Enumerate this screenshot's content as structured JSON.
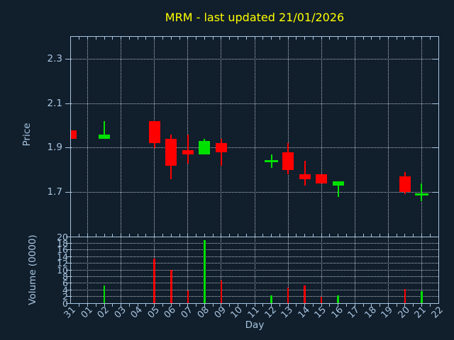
{
  "title": "MRM - last updated 21/01/2026",
  "colors": {
    "background": "#111e2b",
    "axis": "#a6c4e0",
    "grid": "#b2bcc6",
    "up": "#00e000",
    "down": "#ff0000",
    "title": "#ffff00"
  },
  "x_axis": {
    "label": "Day",
    "categories": [
      "31",
      "01",
      "02",
      "03",
      "04",
      "05",
      "06",
      "07",
      "08",
      "09",
      "10",
      "11",
      "12",
      "13",
      "14",
      "15",
      "16",
      "17",
      "18",
      "19",
      "20",
      "21",
      "22"
    ],
    "gridline_days": [
      "01",
      "03",
      "05",
      "07",
      "09",
      "11",
      "13",
      "15",
      "17",
      "19",
      "21"
    ]
  },
  "price_axis": {
    "label": "Price",
    "ticks": [
      "1.7",
      "1.9",
      "2.1",
      "2.3"
    ],
    "range": [
      1.5,
      2.4
    ]
  },
  "volume_axis": {
    "label": "Volume (0000)",
    "ticks": [
      "0",
      "2",
      "4",
      "6",
      "8",
      "10",
      "12",
      "14",
      "16",
      "18",
      "20"
    ],
    "range": [
      0,
      20
    ]
  },
  "chart_data": [
    {
      "type": "candlestick",
      "title": "MRM - last updated 21/01/2026",
      "xlabel": "Day",
      "ylabel": "Price",
      "ylim": [
        1.5,
        2.4
      ],
      "grid": true,
      "categories": [
        "31",
        "01",
        "02",
        "03",
        "04",
        "05",
        "06",
        "07",
        "08",
        "09",
        "10",
        "11",
        "12",
        "13",
        "14",
        "15",
        "16",
        "17",
        "18",
        "19",
        "20",
        "21",
        "22"
      ],
      "candles": [
        {
          "day": "31",
          "open": 1.98,
          "high": 1.98,
          "low": 1.94,
          "close": 1.94,
          "direction": "down"
        },
        {
          "day": "02",
          "open": 1.94,
          "high": 2.02,
          "low": 1.94,
          "close": 1.96,
          "direction": "up"
        },
        {
          "day": "05",
          "open": 2.02,
          "high": 2.02,
          "low": 1.9,
          "close": 1.92,
          "direction": "down"
        },
        {
          "day": "06",
          "open": 1.94,
          "high": 1.96,
          "low": 1.76,
          "close": 1.82,
          "direction": "down"
        },
        {
          "day": "07",
          "open": 1.89,
          "high": 1.96,
          "low": 1.83,
          "close": 1.87,
          "direction": "down"
        },
        {
          "day": "08",
          "open": 1.87,
          "high": 1.94,
          "low": 1.87,
          "close": 1.93,
          "direction": "up"
        },
        {
          "day": "09",
          "open": 1.92,
          "high": 1.94,
          "low": 1.82,
          "close": 1.88,
          "direction": "down"
        },
        {
          "day": "12",
          "open": 1.84,
          "high": 1.87,
          "low": 1.81,
          "close": 1.84,
          "direction": "up"
        },
        {
          "day": "13",
          "open": 1.88,
          "high": 1.92,
          "low": 1.78,
          "close": 1.8,
          "direction": "down"
        },
        {
          "day": "14",
          "open": 1.78,
          "high": 1.84,
          "low": 1.73,
          "close": 1.76,
          "direction": "down"
        },
        {
          "day": "15",
          "open": 1.78,
          "high": 1.78,
          "low": 1.74,
          "close": 1.74,
          "direction": "down"
        },
        {
          "day": "16",
          "open": 1.73,
          "high": 1.75,
          "low": 1.68,
          "close": 1.75,
          "direction": "up"
        },
        {
          "day": "20",
          "open": 1.77,
          "high": 1.79,
          "low": 1.69,
          "close": 1.7,
          "direction": "down"
        },
        {
          "day": "21",
          "open": 1.69,
          "high": 1.74,
          "low": 1.66,
          "close": 1.69,
          "direction": "up"
        }
      ]
    },
    {
      "type": "bar",
      "xlabel": "Day",
      "ylabel": "Volume (0000)",
      "ylim": [
        0,
        20
      ],
      "grid": true,
      "categories": [
        "31",
        "01",
        "02",
        "03",
        "04",
        "05",
        "06",
        "07",
        "08",
        "09",
        "10",
        "11",
        "12",
        "13",
        "14",
        "15",
        "16",
        "17",
        "18",
        "19",
        "20",
        "21",
        "22"
      ],
      "bars": [
        {
          "day": "02",
          "value": 5.3,
          "direction": "up"
        },
        {
          "day": "05",
          "value": 13.4,
          "direction": "down"
        },
        {
          "day": "06",
          "value": 10.0,
          "direction": "down"
        },
        {
          "day": "07",
          "value": 3.9,
          "direction": "down"
        },
        {
          "day": "08",
          "value": 19.0,
          "direction": "up"
        },
        {
          "day": "09",
          "value": 6.9,
          "direction": "down"
        },
        {
          "day": "12",
          "value": 2.4,
          "direction": "up"
        },
        {
          "day": "13",
          "value": 4.6,
          "direction": "down"
        },
        {
          "day": "14",
          "value": 5.4,
          "direction": "down"
        },
        {
          "day": "15",
          "value": 2.0,
          "direction": "down"
        },
        {
          "day": "16",
          "value": 2.4,
          "direction": "up"
        },
        {
          "day": "20",
          "value": 4.3,
          "direction": "down"
        },
        {
          "day": "21",
          "value": 3.7,
          "direction": "up"
        }
      ]
    }
  ]
}
